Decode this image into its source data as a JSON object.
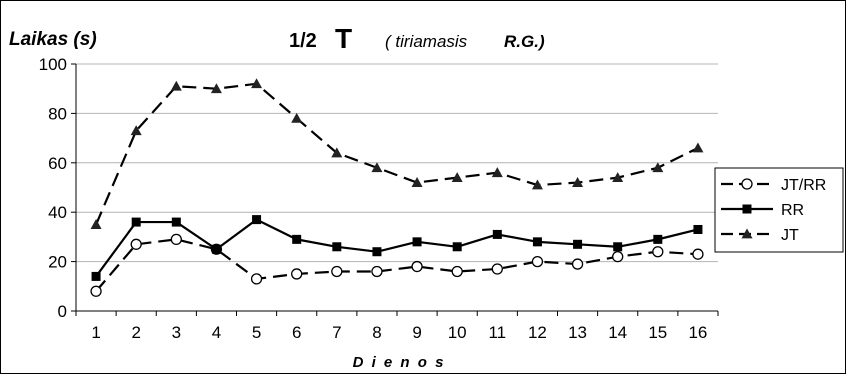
{
  "chart_data": {
    "type": "line",
    "title_prefix": "1/2",
    "title_main": "T",
    "title_note_open": "( tiriamasis",
    "title_note_close": "R.G.)",
    "ylabel": "Laikas (s)",
    "xlabel": "D i e n o s",
    "ylim": [
      0,
      100
    ],
    "yticks": [
      0,
      20,
      40,
      60,
      80,
      100
    ],
    "x": [
      1,
      2,
      3,
      4,
      5,
      6,
      7,
      8,
      9,
      10,
      11,
      12,
      13,
      14,
      15,
      16
    ],
    "grid": true,
    "legend_position": "right",
    "series": [
      {
        "name": "JT/RR",
        "marker": "open-circle",
        "dash": "long-dash",
        "color": "#000000",
        "values": [
          8,
          27,
          29,
          25,
          13,
          15,
          16,
          16,
          18,
          16,
          17,
          20,
          19,
          22,
          24,
          23
        ]
      },
      {
        "name": "RR",
        "marker": "filled-square",
        "dash": "solid",
        "color": "#000000",
        "values": [
          14,
          36,
          36,
          25,
          37,
          29,
          26,
          24,
          28,
          26,
          31,
          28,
          27,
          26,
          29,
          33
        ]
      },
      {
        "name": "JT",
        "marker": "filled-triangle",
        "dash": "long-dash",
        "color": "#000000",
        "values": [
          35,
          73,
          91,
          90,
          92,
          78,
          64,
          58,
          52,
          54,
          56,
          51,
          52,
          54,
          58,
          66
        ]
      }
    ]
  }
}
